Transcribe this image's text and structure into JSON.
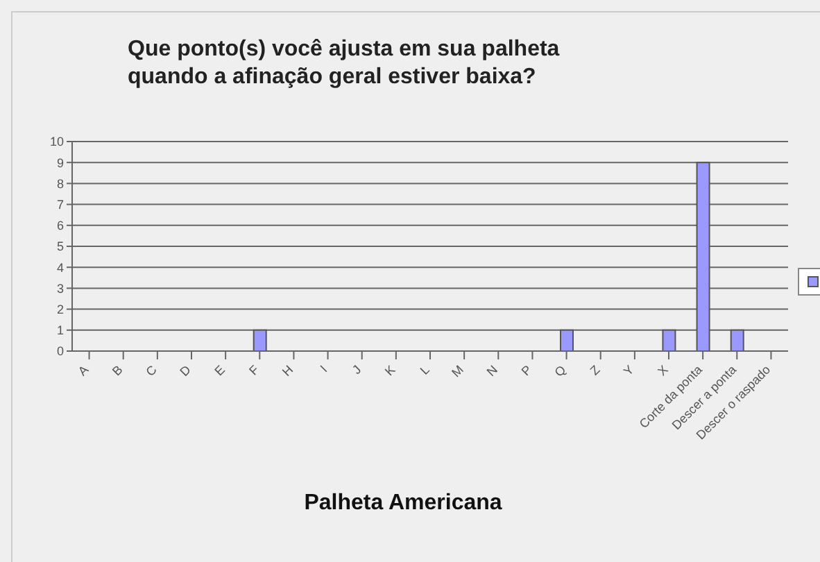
{
  "chart_data": {
    "type": "bar",
    "title": "Que ponto(s) você ajusta em sua palheta\nquando a afinação geral estiver baixa?",
    "xlabel": "Palheta Americana",
    "categories": [
      "A",
      "B",
      "C",
      "D",
      "E",
      "F",
      "H",
      "I",
      "J",
      "K",
      "L",
      "M",
      "N",
      "P",
      "Q",
      "Z",
      "Y",
      "X",
      "Corte da ponta",
      "Descer a ponta",
      "Descer o raspado"
    ],
    "values": [
      0,
      0,
      0,
      0,
      0,
      1,
      0,
      0,
      0,
      0,
      0,
      0,
      0,
      0,
      1,
      0,
      0,
      1,
      9,
      1,
      0
    ],
    "color": "#9999ff",
    "ylim": [
      0,
      10
    ],
    "yticks": [
      0,
      1,
      2,
      3,
      4,
      5,
      6,
      7,
      8,
      9,
      10
    ],
    "grid": "y"
  }
}
